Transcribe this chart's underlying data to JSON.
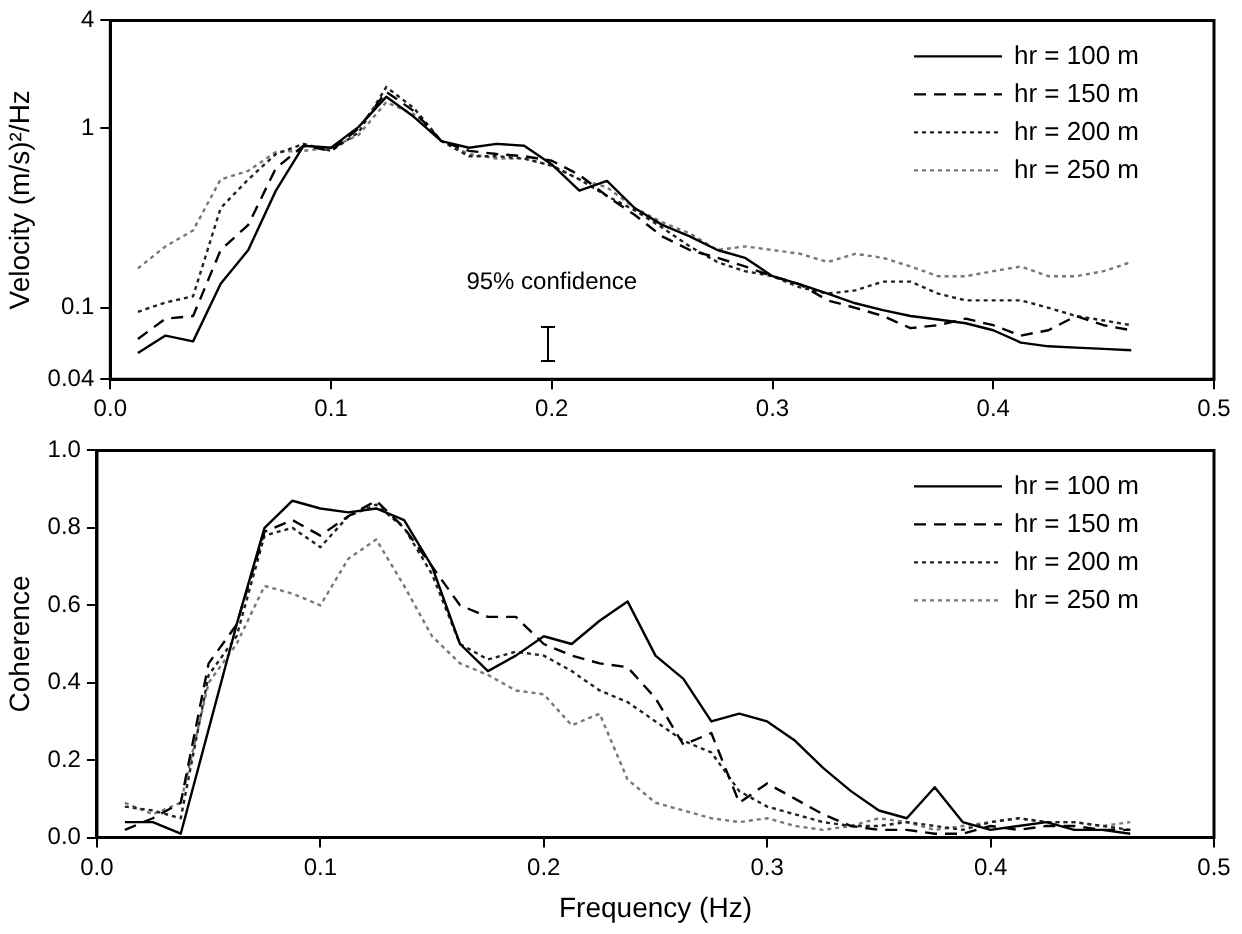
{
  "chart_data": [
    {
      "type": "line",
      "ylabel": "Velocity (m/s)²/Hz",
      "log": "y",
      "grid": false,
      "legend": "top right",
      "x": [
        0.0125,
        0.025,
        0.0375,
        0.05,
        0.0625,
        0.075,
        0.0875,
        0.1,
        0.1125,
        0.125,
        0.1375,
        0.15,
        0.1625,
        0.175,
        0.1875,
        0.2,
        0.2125,
        0.225,
        0.2375,
        0.25,
        0.2625,
        0.275,
        0.2875,
        0.3,
        0.3125,
        0.325,
        0.3375,
        0.35,
        0.3625,
        0.375,
        0.3875,
        0.4,
        0.4125,
        0.425,
        0.4375,
        0.45,
        0.4625
      ],
      "xlim": [
        0,
        0.5
      ],
      "xticks": [
        {
          "value": 0,
          "label": "0.0"
        },
        0.1,
        0.2,
        0.3,
        0.4,
        0.5
      ],
      "ylim": [
        0.04,
        4
      ],
      "yticks": [
        0.04,
        0.1,
        1,
        4
      ],
      "annotations": [
        "95% confidence"
      ],
      "series": [
        {
          "name": "hr = 100 m",
          "color": "#000000",
          "line_style": "solid",
          "values": [
            0.056,
            0.07,
            0.065,
            0.136,
            0.21,
            0.45,
            0.8,
            0.78,
            1.02,
            1.5,
            1.16,
            0.85,
            0.78,
            0.82,
            0.8,
            0.63,
            0.45,
            0.51,
            0.36,
            0.29,
            0.25,
            0.21,
            0.19,
            0.15,
            0.135,
            0.12,
            0.106,
            0.097,
            0.09,
            0.086,
            0.082,
            0.075,
            0.064,
            0.061,
            0.06,
            0.059,
            0.058
          ]
        },
        {
          "name": "hr = 150 m",
          "color": "#000000",
          "line_style": "dashed",
          "values": [
            0.067,
            0.087,
            0.09,
            0.21,
            0.29,
            0.6,
            0.8,
            0.75,
            1.0,
            1.6,
            1.25,
            0.85,
            0.75,
            0.72,
            0.7,
            0.66,
            0.55,
            0.42,
            0.33,
            0.25,
            0.21,
            0.19,
            0.17,
            0.15,
            0.135,
            0.11,
            0.1,
            0.09,
            0.077,
            0.08,
            0.087,
            0.08,
            0.07,
            0.075,
            0.09,
            0.08,
            0.075
          ]
        },
        {
          "name": "hr = 200 m",
          "color": "#222222",
          "line_style": "dotted",
          "values": [
            0.095,
            0.107,
            0.116,
            0.36,
            0.52,
            0.72,
            0.82,
            0.75,
            0.95,
            1.7,
            1.3,
            0.85,
            0.7,
            0.7,
            0.68,
            0.62,
            0.52,
            0.42,
            0.35,
            0.28,
            0.22,
            0.18,
            0.16,
            0.15,
            0.13,
            0.12,
            0.125,
            0.14,
            0.14,
            0.12,
            0.11,
            0.11,
            0.11,
            0.1,
            0.09,
            0.085,
            0.08
          ]
        },
        {
          "name": "hr = 250 m",
          "color": "#777777",
          "line_style": "dotted",
          "values": [
            0.166,
            0.22,
            0.27,
            0.52,
            0.58,
            0.74,
            0.75,
            0.78,
            0.92,
            1.4,
            1.2,
            0.85,
            0.72,
            0.68,
            0.68,
            0.62,
            0.52,
            0.47,
            0.36,
            0.3,
            0.26,
            0.21,
            0.22,
            0.21,
            0.2,
            0.18,
            0.2,
            0.19,
            0.17,
            0.15,
            0.15,
            0.16,
            0.17,
            0.15,
            0.15,
            0.16,
            0.18
          ]
        }
      ]
    },
    {
      "type": "line",
      "xlabel": "Frequency (Hz)",
      "ylabel": "Coherence",
      "grid": false,
      "legend": "top right",
      "x": [
        0.0125,
        0.025,
        0.0375,
        0.05,
        0.0625,
        0.075,
        0.0875,
        0.1,
        0.1125,
        0.125,
        0.1375,
        0.15,
        0.1625,
        0.175,
        0.1875,
        0.2,
        0.2125,
        0.225,
        0.2375,
        0.25,
        0.2625,
        0.275,
        0.2875,
        0.3,
        0.3125,
        0.325,
        0.3375,
        0.35,
        0.3625,
        0.375,
        0.3875,
        0.4,
        0.4125,
        0.425,
        0.4375,
        0.45,
        0.4625
      ],
      "xlim": [
        0,
        0.5
      ],
      "xticks": [
        {
          "value": 0,
          "label": "0.0"
        },
        0.1,
        0.2,
        0.3,
        0.4,
        0.5
      ],
      "ylim": [
        0,
        1
      ],
      "yticks": [
        {
          "value": 0,
          "label": "0.0"
        },
        0.2,
        0.4,
        0.6,
        0.8,
        {
          "value": 1,
          "label": "1.0"
        }
      ],
      "series": [
        {
          "name": "hr = 100 m",
          "color": "#000000",
          "line_style": "solid",
          "values": [
            0.04,
            0.04,
            0.01,
            0.28,
            0.55,
            0.8,
            0.87,
            0.85,
            0.84,
            0.85,
            0.82,
            0.7,
            0.5,
            0.43,
            0.47,
            0.52,
            0.5,
            0.56,
            0.61,
            0.47,
            0.41,
            0.3,
            0.32,
            0.3,
            0.25,
            0.18,
            0.12,
            0.07,
            0.05,
            0.13,
            0.04,
            0.02,
            0.03,
            0.04,
            0.02,
            0.02,
            0.01
          ]
        },
        {
          "name": "hr = 150 m",
          "color": "#000000",
          "line_style": "dashed",
          "values": [
            0.02,
            0.05,
            0.09,
            0.45,
            0.55,
            0.79,
            0.82,
            0.78,
            0.83,
            0.87,
            0.8,
            0.7,
            0.6,
            0.57,
            0.57,
            0.5,
            0.47,
            0.45,
            0.44,
            0.36,
            0.24,
            0.27,
            0.09,
            0.14,
            0.1,
            0.06,
            0.03,
            0.02,
            0.02,
            0.01,
            0.01,
            0.03,
            0.02,
            0.03,
            0.03,
            0.02,
            0.02
          ]
        },
        {
          "name": "hr = 200 m",
          "color": "#222222",
          "line_style": "dotted",
          "values": [
            0.08,
            0.07,
            0.05,
            0.42,
            0.52,
            0.78,
            0.8,
            0.75,
            0.83,
            0.86,
            0.8,
            0.68,
            0.5,
            0.46,
            0.48,
            0.47,
            0.43,
            0.38,
            0.35,
            0.3,
            0.25,
            0.22,
            0.12,
            0.08,
            0.06,
            0.04,
            0.03,
            0.03,
            0.04,
            0.03,
            0.02,
            0.04,
            0.05,
            0.04,
            0.04,
            0.03,
            0.02
          ]
        },
        {
          "name": "hr = 250 m",
          "color": "#777777",
          "line_style": "dotted",
          "values": [
            0.09,
            0.06,
            0.09,
            0.4,
            0.5,
            0.65,
            0.63,
            0.6,
            0.72,
            0.77,
            0.65,
            0.52,
            0.45,
            0.42,
            0.38,
            0.37,
            0.29,
            0.32,
            0.15,
            0.09,
            0.07,
            0.05,
            0.04,
            0.05,
            0.03,
            0.02,
            0.03,
            0.05,
            0.04,
            0.02,
            0.03,
            0.04,
            0.05,
            0.04,
            0.04,
            0.03,
            0.04
          ]
        }
      ]
    }
  ]
}
